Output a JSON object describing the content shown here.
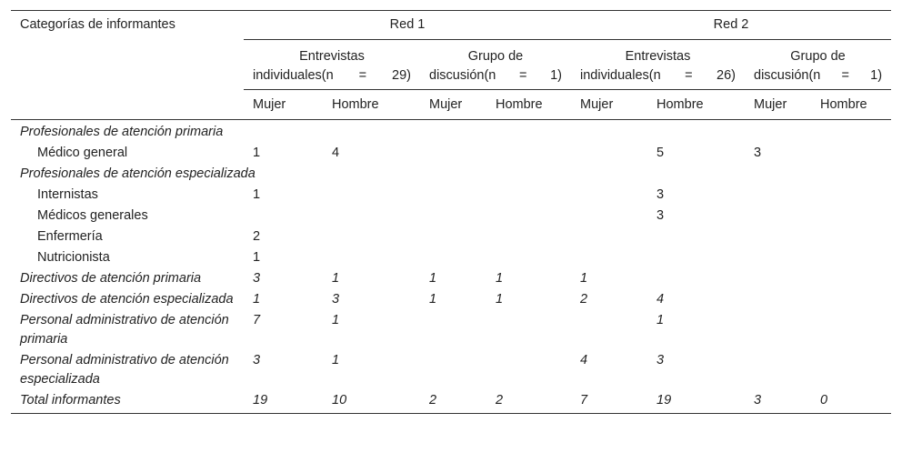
{
  "table": {
    "corner": "Categorías de informantes",
    "networks": [
      "Red 1",
      "Red 2"
    ],
    "groups": [
      {
        "line1": "Entrevistas",
        "line2": "individuales(n = 29)"
      },
      {
        "line1": "Grupo de",
        "line2": "discusión(n = 1)"
      },
      {
        "line1": "Entrevistas",
        "line2": "individuales(n = 26)"
      },
      {
        "line1": "Grupo de",
        "line2": "discusión(n = 1)"
      }
    ],
    "sexes": [
      "Mujer",
      "Hombre",
      "Mujer",
      "Hombre",
      "Mujer",
      "Hombre",
      "Mujer",
      "Hombre"
    ],
    "rows": [
      {
        "label": "Profesionales de atención primaria",
        "italic": true,
        "indent": false,
        "cells": null
      },
      {
        "label": "Médico general",
        "italic": false,
        "indent": true,
        "cells": [
          1,
          4,
          null,
          null,
          null,
          5,
          3,
          null
        ]
      },
      {
        "label": "Profesionales de atención especializada",
        "italic": true,
        "indent": false,
        "cells": null
      },
      {
        "label": "Internistas",
        "italic": false,
        "indent": true,
        "cells": [
          1,
          null,
          null,
          null,
          null,
          3,
          null,
          null
        ]
      },
      {
        "label": "Médicos generales",
        "italic": false,
        "indent": true,
        "cells": [
          null,
          null,
          null,
          null,
          null,
          3,
          null,
          null
        ]
      },
      {
        "label": "Enfermería",
        "italic": false,
        "indent": true,
        "cells": [
          2,
          null,
          null,
          null,
          null,
          null,
          null,
          null
        ]
      },
      {
        "label": "Nutricionista",
        "italic": false,
        "indent": true,
        "cells": [
          1,
          null,
          null,
          null,
          null,
          null,
          null,
          null
        ]
      },
      {
        "label": "Directivos de atención primaria",
        "italic": true,
        "indent": false,
        "cells": [
          3,
          1,
          1,
          1,
          1,
          null,
          null,
          null
        ]
      },
      {
        "label": "Directivos de atención especializada",
        "italic": true,
        "indent": false,
        "cells": [
          1,
          3,
          1,
          1,
          2,
          4,
          null,
          null
        ]
      },
      {
        "label": "Personal administrativo de atención primaria",
        "italic": true,
        "indent": false,
        "cells": [
          7,
          1,
          null,
          null,
          null,
          1,
          null,
          null
        ]
      },
      {
        "label": "Personal administrativo de atención especializada",
        "italic": true,
        "indent": false,
        "cells": [
          3,
          1,
          null,
          null,
          4,
          3,
          null,
          null
        ]
      },
      {
        "label": "Total informantes",
        "italic": true,
        "indent": false,
        "cells": [
          19,
          10,
          2,
          2,
          7,
          19,
          3,
          0
        ]
      }
    ]
  }
}
